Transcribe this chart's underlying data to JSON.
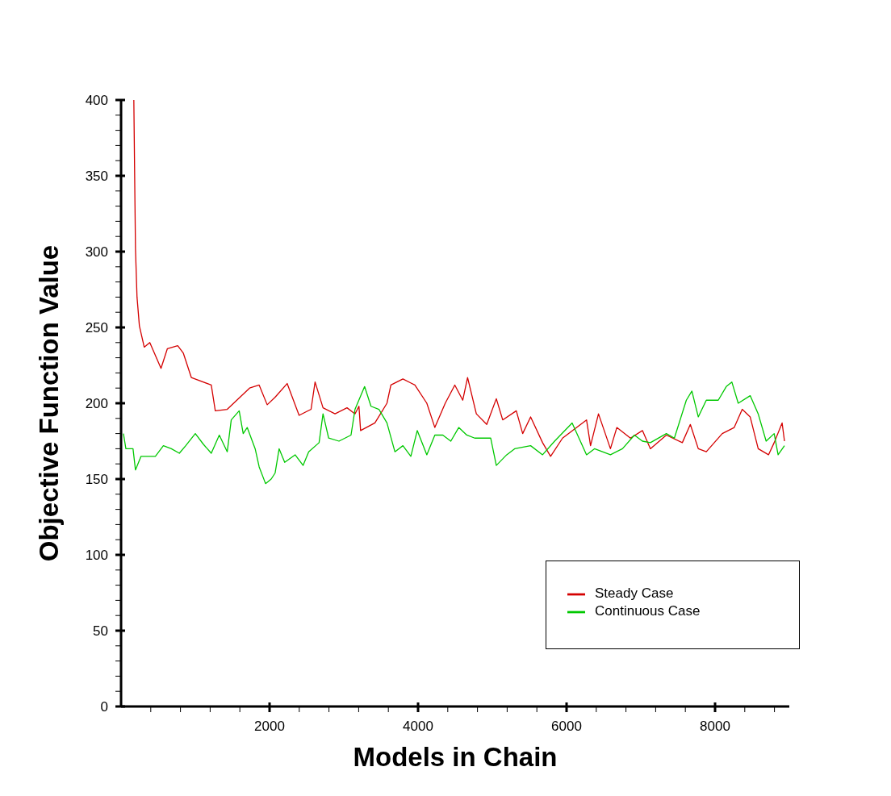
{
  "chart_data": {
    "type": "line",
    "xlabel": "Models in Chain",
    "ylabel": "Objective Function Value",
    "xlim": [
      0,
      9000
    ],
    "ylim": [
      0,
      400
    ],
    "xticks": [
      {
        "value": 400,
        "label": null
      },
      {
        "value": 800,
        "label": null
      },
      {
        "value": 1200,
        "label": null
      },
      {
        "value": 1600,
        "label": null
      },
      2000,
      {
        "value": 2400,
        "label": null
      },
      {
        "value": 2800,
        "label": null
      },
      {
        "value": 3200,
        "label": null
      },
      {
        "value": 3600,
        "label": null
      },
      4000,
      {
        "value": 4400,
        "label": null
      },
      {
        "value": 4800,
        "label": null
      },
      {
        "value": 5200,
        "label": null
      },
      {
        "value": 5600,
        "label": null
      },
      6000,
      {
        "value": 6400,
        "label": null
      },
      {
        "value": 6800,
        "label": null
      },
      {
        "value": 7200,
        "label": null
      },
      {
        "value": 7600,
        "label": null
      },
      8000,
      {
        "value": 8400,
        "label": null
      },
      {
        "value": 8800,
        "label": null
      }
    ],
    "yticks": [
      0,
      {
        "value": 10,
        "label": null
      },
      {
        "value": 20,
        "label": null
      },
      {
        "value": 30,
        "label": null
      },
      {
        "value": 40,
        "label": null
      },
      50,
      {
        "value": 60,
        "label": null
      },
      {
        "value": 70,
        "label": null
      },
      {
        "value": 80,
        "label": null
      },
      {
        "value": 90,
        "label": null
      },
      100,
      {
        "value": 110,
        "label": null
      },
      {
        "value": 120,
        "label": null
      },
      {
        "value": 130,
        "label": null
      },
      {
        "value": 140,
        "label": null
      },
      150,
      {
        "value": 160,
        "label": null
      },
      {
        "value": 170,
        "label": null
      },
      {
        "value": 180,
        "label": null
      },
      {
        "value": 190,
        "label": null
      },
      200,
      {
        "value": 210,
        "label": null
      },
      {
        "value": 220,
        "label": null
      },
      {
        "value": 230,
        "label": null
      },
      {
        "value": 240,
        "label": null
      },
      250,
      {
        "value": 260,
        "label": null
      },
      {
        "value": 270,
        "label": null
      },
      {
        "value": 280,
        "label": null
      },
      {
        "value": 290,
        "label": null
      },
      300,
      {
        "value": 310,
        "label": null
      },
      {
        "value": 320,
        "label": null
      },
      {
        "value": 330,
        "label": null
      },
      {
        "value": 340,
        "label": null
      },
      350,
      {
        "value": 360,
        "label": null
      },
      {
        "value": 370,
        "label": null
      },
      {
        "value": 380,
        "label": null
      },
      {
        "value": 390,
        "label": null
      },
      400
    ],
    "grid": false,
    "legend": "bottom right",
    "marker": "none",
    "line_style": "solid",
    "series": [
      {
        "name": "Steady Case",
        "color": "#d40000",
        "x": [
          172,
          194,
          215,
          247,
          312,
          387,
          538,
          624,
          763,
          839,
          946,
          1215,
          1269,
          1430,
          1731,
          1860,
          1968,
          2075,
          2237,
          2398,
          2559,
          2613,
          2720,
          2882,
          3043,
          3151,
          3204,
          3226,
          3419,
          3581,
          3634,
          3796,
          3957,
          4118,
          4226,
          4366,
          4495,
          4602,
          4667,
          4785,
          4925,
          5054,
          5140,
          5323,
          5409,
          5516,
          5677,
          5785,
          5946,
          6269,
          6323,
          6430,
          6591,
          6677,
          6860,
          7022,
          7129,
          7344,
          7559,
          7667,
          7774,
          7882,
          8097,
          8258,
          8366,
          8473,
          8581,
          8720,
          8796,
          8903,
          8935
        ],
        "values": [
          400,
          302,
          270,
          251,
          237,
          240,
          223,
          236,
          238,
          233,
          217,
          212,
          195,
          196,
          210,
          212,
          199,
          204,
          213,
          192,
          196,
          214,
          197,
          193,
          197,
          193,
          198,
          182,
          187,
          200,
          212,
          216,
          212,
          200,
          184,
          200,
          212,
          202,
          217,
          193,
          186,
          203,
          189,
          195,
          180,
          191,
          174,
          165,
          177,
          189,
          172,
          193,
          170,
          184,
          177,
          182,
          170,
          179,
          174,
          186,
          170,
          168,
          180,
          184,
          196,
          191,
          170,
          166,
          174,
          187,
          175
        ]
      },
      {
        "name": "Continuous Case",
        "color": "#00c800",
        "x": [
          32,
          65,
          161,
          194,
          269,
          462,
          570,
          677,
          785,
          871,
          1000,
          1108,
          1215,
          1323,
          1430,
          1484,
          1591,
          1645,
          1699,
          1806,
          1860,
          1946,
          2022,
          2075,
          2129,
          2204,
          2344,
          2452,
          2527,
          2667,
          2720,
          2796,
          2935,
          3097,
          3151,
          3280,
          3366,
          3473,
          3581,
          3688,
          3796,
          3903,
          3989,
          4118,
          4226,
          4333,
          4441,
          4548,
          4656,
          4763,
          4978,
          5054,
          5194,
          5301,
          5516,
          5677,
          5839,
          6075,
          6269,
          6376,
          6591,
          6753,
          6914,
          7022,
          7129,
          7344,
          7452,
          7613,
          7688,
          7774,
          7882,
          8043,
          8151,
          8226,
          8312,
          8473,
          8581,
          8688,
          8796,
          8849,
          8935
        ],
        "values": [
          180,
          170,
          170,
          156,
          165,
          165,
          172,
          170,
          167,
          172,
          180,
          173,
          167,
          179,
          168,
          189,
          195,
          180,
          184,
          170,
          158,
          147,
          150,
          154,
          170,
          161,
          166,
          159,
          168,
          174,
          193,
          177,
          175,
          179,
          196,
          211,
          198,
          196,
          187,
          168,
          172,
          165,
          182,
          166,
          179,
          179,
          175,
          184,
          179,
          177,
          177,
          159,
          166,
          170,
          172,
          166,
          175,
          187,
          166,
          170,
          166,
          170,
          179,
          175,
          174,
          180,
          177,
          202,
          208,
          191,
          202,
          202,
          211,
          214,
          200,
          205,
          193,
          175,
          180,
          166,
          172
        ]
      }
    ]
  }
}
